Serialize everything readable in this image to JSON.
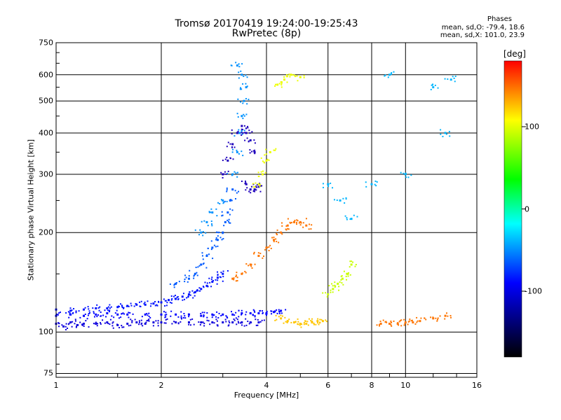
{
  "chart_data": {
    "type": "scatter",
    "title": "Tromsø 20170419 19:24:00-19:25:43",
    "subtitle": "RwPretec (8p)",
    "phases_title": "Phases",
    "phases_o": "mean, sd,O: -79.4, 18.6",
    "phases_x": "mean, sd,X: 101.0, 23.9",
    "xlabel": "Frequency [MHz]",
    "ylabel": "Stationary phase Virtual Height [km]",
    "xscale": "log",
    "yscale": "log",
    "xlim": [
      1,
      16
    ],
    "ylim": [
      73,
      750
    ],
    "grid": true,
    "x_ticks": [
      1,
      2,
      4,
      6,
      8,
      10,
      16
    ],
    "x_tick_labels": [
      "1",
      "2",
      "4",
      "6",
      "8",
      "10",
      "16"
    ],
    "y_ticks": [
      75,
      100,
      200,
      300,
      400,
      500,
      600,
      750
    ],
    "y_tick_labels": [
      "75",
      "100",
      "200",
      "300",
      "400",
      "500",
      "600",
      "750"
    ],
    "colorbar": {
      "label": "[deg]",
      "range": [
        -180,
        180
      ],
      "ticks": [
        100,
        0,
        -100
      ],
      "tick_labels": [
        "100",
        "0",
        "-100"
      ],
      "colormap": "rainbow",
      "colors": [
        "#ff0000",
        "#ffff00",
        "#00ff00",
        "#00ffff",
        "#0000ff",
        "#000000"
      ]
    },
    "series": [
      {
        "phase": -110,
        "points": [
          [
            1.0,
            106
          ],
          [
            1.05,
            104
          ],
          [
            1.1,
            107
          ],
          [
            1.15,
            105
          ],
          [
            1.2,
            106
          ],
          [
            1.3,
            106
          ],
          [
            1.4,
            107
          ],
          [
            1.5,
            105
          ],
          [
            1.6,
            106
          ],
          [
            1.7,
            107
          ],
          [
            1.8,
            106
          ],
          [
            1.9,
            107
          ],
          [
            2.0,
            107
          ],
          [
            2.2,
            107
          ],
          [
            2.4,
            107
          ],
          [
            2.6,
            107
          ],
          [
            2.8,
            107
          ],
          [
            3.0,
            107
          ],
          [
            3.2,
            107
          ],
          [
            3.4,
            107
          ],
          [
            3.6,
            107
          ],
          [
            3.8,
            107
          ]
        ]
      },
      {
        "phase": -100,
        "points": [
          [
            1.0,
            112
          ],
          [
            1.1,
            113
          ],
          [
            1.2,
            112
          ],
          [
            1.3,
            113
          ],
          [
            1.4,
            114
          ],
          [
            1.5,
            113
          ],
          [
            1.6,
            113
          ],
          [
            1.8,
            113
          ],
          [
            2.0,
            113
          ],
          [
            2.2,
            113
          ],
          [
            2.4,
            113
          ],
          [
            2.6,
            112
          ],
          [
            2.8,
            113
          ],
          [
            3.0,
            113
          ],
          [
            3.2,
            113
          ],
          [
            3.4,
            114
          ],
          [
            3.6,
            114
          ],
          [
            3.8,
            114
          ],
          [
            4.0,
            114
          ],
          [
            4.2,
            115
          ],
          [
            4.4,
            116
          ]
        ]
      },
      {
        "phase": -95,
        "points": [
          [
            1.0,
            117
          ],
          [
            1.1,
            116
          ],
          [
            1.2,
            117
          ],
          [
            1.3,
            118
          ],
          [
            1.4,
            118
          ],
          [
            1.5,
            119
          ],
          [
            1.6,
            120
          ],
          [
            1.7,
            121
          ],
          [
            1.8,
            121
          ],
          [
            1.9,
            122
          ],
          [
            2.0,
            123
          ],
          [
            2.1,
            125
          ],
          [
            2.2,
            126
          ],
          [
            2.3,
            128
          ],
          [
            2.4,
            130
          ],
          [
            2.5,
            132
          ],
          [
            2.6,
            135
          ],
          [
            2.7,
            138
          ],
          [
            2.8,
            142
          ],
          [
            2.9,
            146
          ],
          [
            3.0,
            150
          ]
        ]
      },
      {
        "phase": -75,
        "points": [
          [
            2.2,
            140
          ],
          [
            2.4,
            145
          ],
          [
            2.5,
            150
          ],
          [
            2.6,
            160
          ],
          [
            2.7,
            170
          ],
          [
            2.8,
            180
          ],
          [
            2.9,
            190
          ],
          [
            3.0,
            200
          ],
          [
            3.05,
            215
          ],
          [
            3.1,
            230
          ],
          [
            3.15,
            250
          ],
          [
            3.2,
            270
          ]
        ]
      },
      {
        "phase": -60,
        "points": [
          [
            2.6,
            200
          ],
          [
            2.7,
            215
          ],
          [
            2.8,
            230
          ],
          [
            3.0,
            250
          ],
          [
            3.2,
            300
          ],
          [
            3.3,
            350
          ],
          [
            3.35,
            400
          ],
          [
            3.4,
            450
          ],
          [
            3.45,
            500
          ],
          [
            3.5,
            550
          ],
          [
            3.4,
            600
          ],
          [
            3.3,
            640
          ]
        ]
      },
      {
        "phase": -120,
        "points": [
          [
            3.0,
            300
          ],
          [
            3.1,
            330
          ],
          [
            3.2,
            370
          ],
          [
            3.3,
            400
          ],
          [
            3.4,
            420
          ],
          [
            3.5,
            400
          ],
          [
            3.6,
            380
          ],
          [
            3.7,
            350
          ],
          [
            3.5,
            280
          ],
          [
            3.6,
            270
          ],
          [
            3.7,
            270
          ],
          [
            3.8,
            275
          ]
        ]
      },
      {
        "phase": 130,
        "points": [
          [
            3.2,
            145
          ],
          [
            3.4,
            150
          ],
          [
            3.6,
            160
          ],
          [
            3.8,
            170
          ],
          [
            4.0,
            180
          ],
          [
            4.2,
            190
          ],
          [
            4.4,
            200
          ],
          [
            4.6,
            210
          ],
          [
            4.8,
            215
          ],
          [
            5.0,
            215
          ],
          [
            5.2,
            210
          ]
        ]
      },
      {
        "phase": 110,
        "points": [
          [
            4.4,
            110
          ],
          [
            4.6,
            108
          ],
          [
            4.8,
            107
          ],
          [
            5.0,
            106
          ],
          [
            5.2,
            106
          ],
          [
            5.4,
            107
          ],
          [
            5.6,
            108
          ],
          [
            5.8,
            108
          ]
        ]
      },
      {
        "phase": 95,
        "points": [
          [
            3.8,
            280
          ],
          [
            3.9,
            300
          ],
          [
            4.0,
            330
          ],
          [
            4.1,
            350
          ],
          [
            4.3,
            560
          ],
          [
            4.5,
            580
          ],
          [
            4.7,
            600
          ],
          [
            5.0,
            590
          ]
        ]
      },
      {
        "phase": 85,
        "points": [
          [
            6.0,
            130
          ],
          [
            6.2,
            135
          ],
          [
            6.4,
            140
          ],
          [
            6.6,
            145
          ],
          [
            6.8,
            150
          ],
          [
            7.0,
            160
          ]
        ]
      },
      {
        "phase": 130,
        "points": [
          [
            8.5,
            106
          ],
          [
            9.0,
            106
          ],
          [
            9.5,
            106
          ],
          [
            10.0,
            107
          ],
          [
            10.5,
            107
          ],
          [
            11.0,
            108
          ],
          [
            12.0,
            110
          ],
          [
            13.0,
            112
          ]
        ]
      },
      {
        "phase": -50,
        "points": [
          [
            6.0,
            280
          ],
          [
            6.5,
            250
          ],
          [
            7.0,
            220
          ],
          [
            8.0,
            280
          ],
          [
            9.0,
            600
          ],
          [
            10.0,
            300
          ],
          [
            12.0,
            550
          ],
          [
            13.0,
            400
          ],
          [
            13.5,
            580
          ]
        ]
      }
    ]
  }
}
